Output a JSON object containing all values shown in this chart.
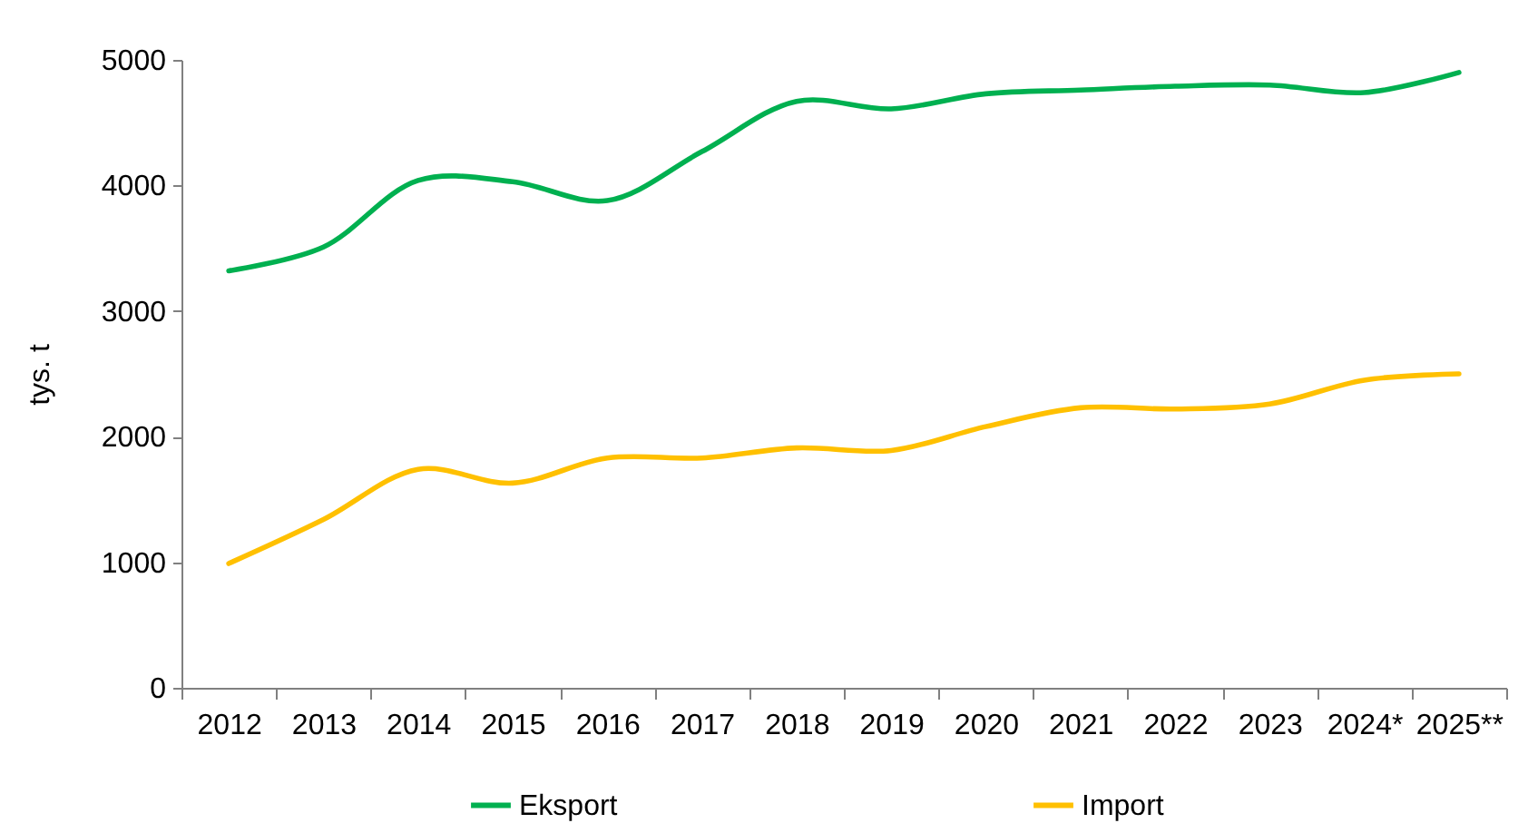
{
  "chart_data": {
    "type": "line",
    "ylabel": "tys. t",
    "categories": [
      "2012",
      "2013",
      "2014",
      "2015",
      "2016",
      "2017",
      "2018",
      "2019",
      "2020",
      "2021",
      "2022",
      "2023",
      "2024*",
      "2025**"
    ],
    "series": [
      {
        "name": "Eksport",
        "color": "#00b050",
        "values": [
          3320,
          3510,
          4040,
          4030,
          3880,
          4270,
          4670,
          4610,
          4730,
          4760,
          4790,
          4800,
          4740,
          4900
        ]
      },
      {
        "name": "Import",
        "color": "#ffc000",
        "values": [
          990,
          1340,
          1740,
          1630,
          1830,
          1830,
          1910,
          1890,
          2080,
          2230,
          2220,
          2260,
          2450,
          2500
        ]
      }
    ],
    "ylim": [
      0,
      5000
    ],
    "yticks": [
      0,
      1000,
      2000,
      3000,
      4000,
      5000
    ],
    "legend": "bottom",
    "line_style": "solid"
  }
}
